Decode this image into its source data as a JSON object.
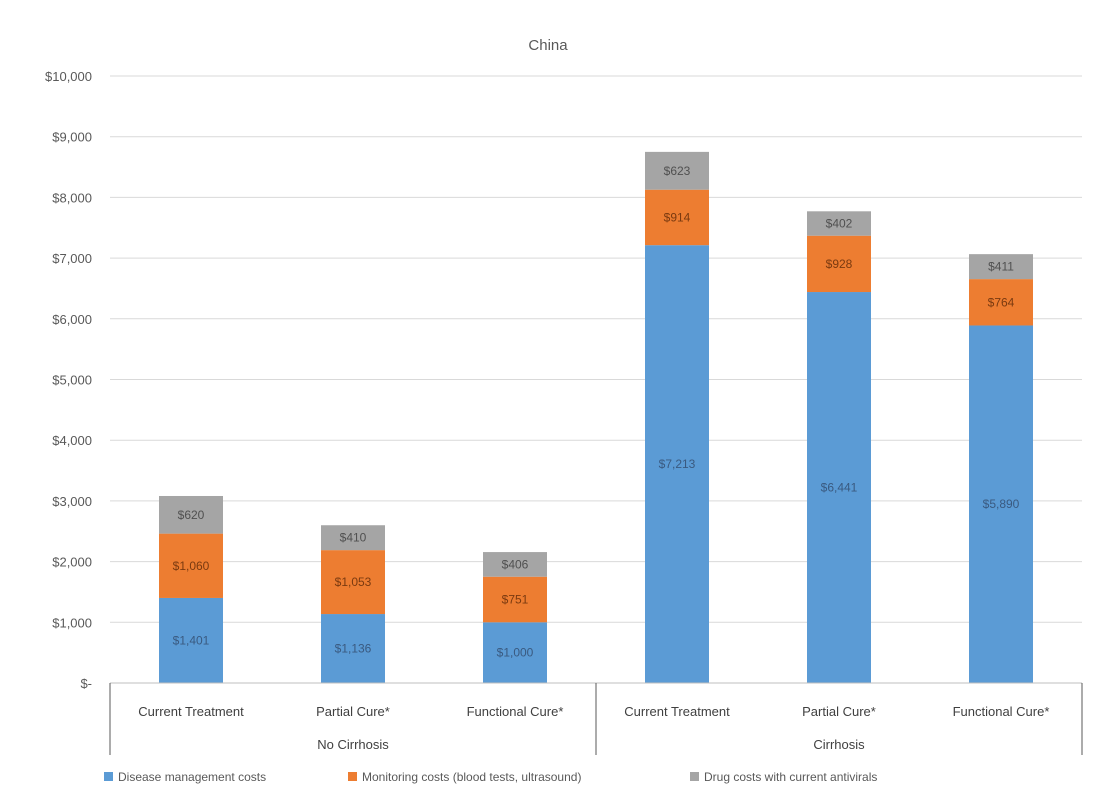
{
  "chart_data": {
    "type": "bar",
    "stacked": true,
    "title": "China",
    "y_tick_labels": [
      "$-",
      "$1,000",
      "$2,000",
      "$3,000",
      "$4,000",
      "$5,000",
      "$6,000",
      "$7,000",
      "$8,000",
      "$9,000",
      "$10,000"
    ],
    "ylim": [
      0,
      10000
    ],
    "grid": true,
    "legend_position": "bottom",
    "categories": [
      "Current Treatment",
      "Partial Cure*",
      "Functional Cure*",
      "Current Treatment",
      "Partial Cure*",
      "Functional Cure*"
    ],
    "groups": [
      {
        "label": "No Cirrhosis",
        "span": [
          0,
          2
        ]
      },
      {
        "label": "Cirrhosis",
        "span": [
          3,
          5
        ]
      }
    ],
    "series": [
      {
        "name": "Disease management costs",
        "color": "#5B9BD5",
        "values": [
          1401,
          1136,
          1000,
          7213,
          6441,
          5890
        ],
        "labels": [
          "$1,401",
          "$1,136",
          "$1,000",
          "$7,213",
          "$6,441",
          "$5,890"
        ]
      },
      {
        "name": "Monitoring costs (blood tests, ultrasound)",
        "color": "#ED7D31",
        "values": [
          1060,
          1053,
          751,
          914,
          928,
          764
        ],
        "labels": [
          "$1,060",
          "$1,053",
          "$751",
          "$914",
          "$928",
          "$764"
        ]
      },
      {
        "name": "Drug costs with current antivirals",
        "color": "#A5A5A5",
        "values": [
          620,
          410,
          406,
          623,
          402,
          411
        ],
        "labels": [
          "$620",
          "$410",
          "$406",
          "$623",
          "$402",
          "$411"
        ]
      }
    ]
  }
}
